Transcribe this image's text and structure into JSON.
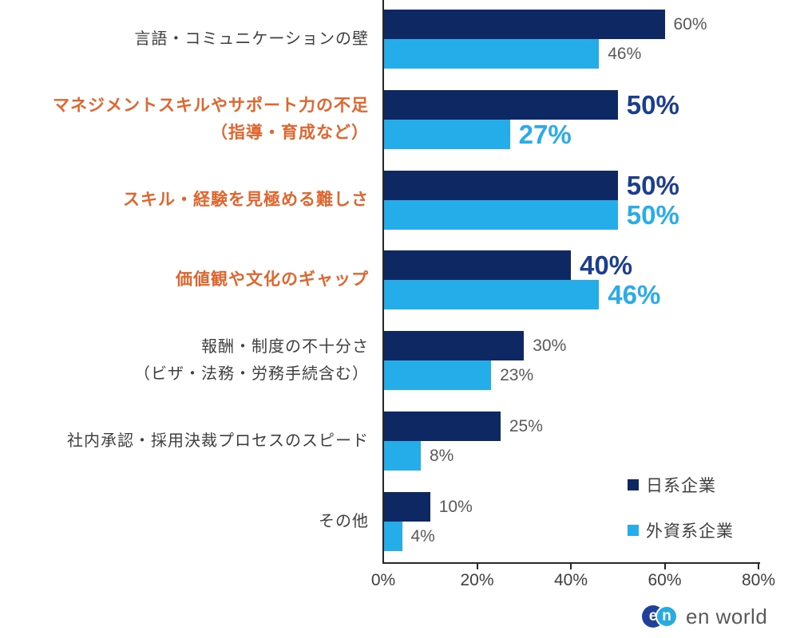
{
  "chart_data": {
    "type": "bar",
    "orientation": "horizontal",
    "title": "",
    "xlabel": "",
    "ylabel": "",
    "unit": "%",
    "xlim": [
      0,
      80
    ],
    "x_tick_values": [
      0,
      20,
      40,
      60,
      80
    ],
    "x_tick_labels": [
      "0%",
      "20%",
      "40%",
      "60%",
      "80%"
    ],
    "grid": false,
    "legend_position": "bottom-right",
    "categories": [
      {
        "lines": [
          "言語・コミュニケーションの壁"
        ],
        "emphasized": false
      },
      {
        "lines": [
          "マネジメントスキルやサポート力の不足",
          "（指導・育成など）"
        ],
        "emphasized": true
      },
      {
        "lines": [
          "スキル・経験を見極める難しさ"
        ],
        "emphasized": true
      },
      {
        "lines": [
          "価値観や文化のギャップ"
        ],
        "emphasized": true
      },
      {
        "lines": [
          "報酬・制度の不十分さ",
          "（ビザ・法務・労務手続含む）"
        ],
        "emphasized": false
      },
      {
        "lines": [
          "社内承認・採用決裁プロセスのスピード"
        ],
        "emphasized": false
      },
      {
        "lines": [
          "その他"
        ],
        "emphasized": false
      }
    ],
    "series": [
      {
        "name": "日系企業",
        "color": "#0e2863",
        "value_text_color": "#1c3e8e",
        "values": [
          60,
          50,
          50,
          40,
          30,
          25,
          10
        ]
      },
      {
        "name": "外資系企業",
        "color": "#24ade9",
        "value_text_color": "#2aace8",
        "values": [
          46,
          27,
          50,
          46,
          23,
          8,
          4
        ]
      }
    ]
  },
  "legend": {
    "items": [
      {
        "label": "日系企業",
        "color": "#0e2863"
      },
      {
        "label": "外資系企業",
        "color": "#24ade9"
      }
    ]
  },
  "branding": {
    "logo_letter_1": "e",
    "logo_letter_2": "n",
    "logo_text": "en world",
    "circle_1_color": "#1f419a",
    "circle_2_color": "#29abe2"
  },
  "colors": {
    "background": "#ffffff",
    "axis": "#262626",
    "category_label": "#3f3f3f",
    "category_label_emphasized": "#e2652e",
    "value_label_normal": "#595959"
  }
}
